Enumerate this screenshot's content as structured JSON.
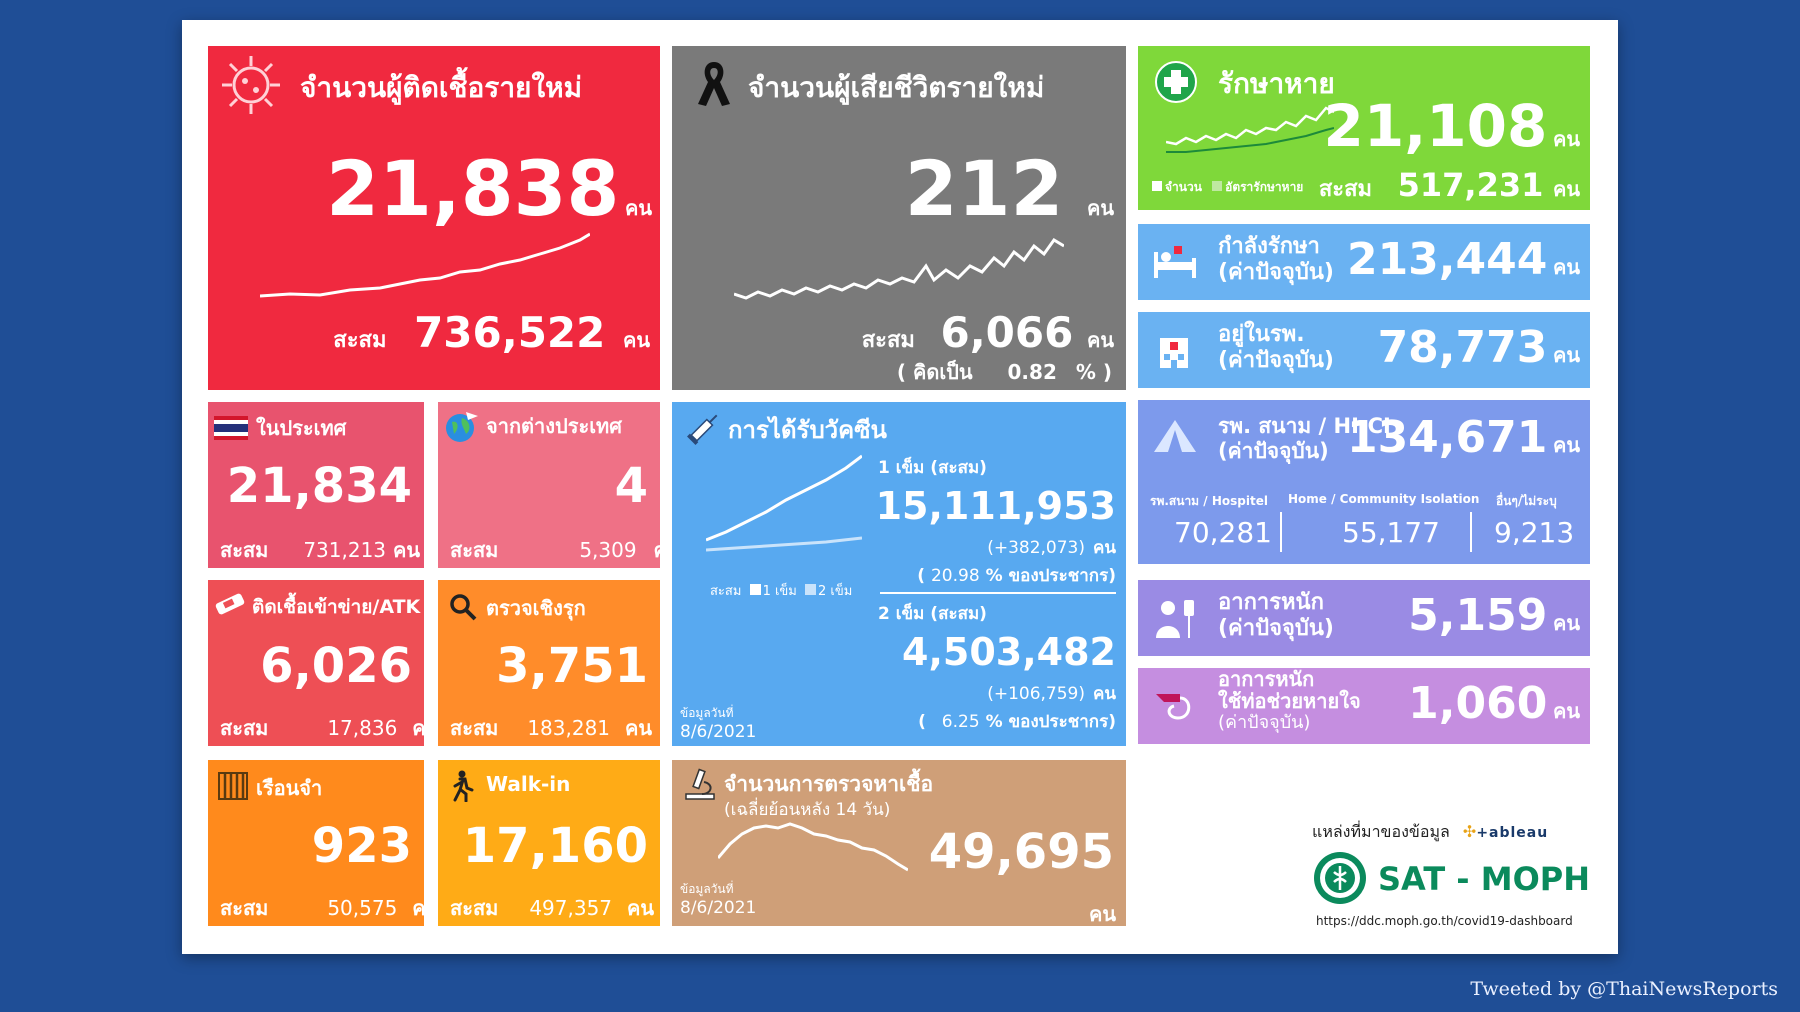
{
  "new_cases": {
    "title": "จำนวนผู้ติดเชื้อรายใหม่",
    "value": "21,838",
    "unit": "คน",
    "total_label": "สะสม",
    "total_value": "736,522",
    "total_unit": "คน"
  },
  "new_deaths": {
    "title": "จำนวนผู้เสียชีวิตรายใหม่",
    "value": "212",
    "unit": "คน",
    "total_label": "สะสม",
    "total_value": "6,066",
    "total_unit": "คน",
    "pct_open": "( คิดเป็น",
    "pct_value": "0.82",
    "pct_close": "% )"
  },
  "recovered": {
    "title": "รักษาหาย",
    "value": "21,108",
    "unit": "คน",
    "legend_count": "จำนวน",
    "legend_rate": "อัตรารักษาหาย",
    "total_label": "สะสม",
    "total_value": "517,231",
    "total_unit": "คน"
  },
  "treating": {
    "line1": "กำลังรักษา",
    "line2": "(ค่าปัจจุบัน)",
    "value": "213,444",
    "unit": "คน"
  },
  "hospital": {
    "line1": "อยู่ในรพ.",
    "line2": "(ค่าปัจจุบัน)",
    "value": "78,773",
    "unit": "คน"
  },
  "field_hospital": {
    "line1": "รพ. สนาม / HI-CI",
    "line2": "(ค่าปัจจุบัน)",
    "value": "134,671",
    "unit": "คน",
    "sub": [
      {
        "label": "รพ.สนาม / Hospitel",
        "value": "70,281"
      },
      {
        "label": "Home / Community Isolation",
        "value": "55,177"
      },
      {
        "label": "อื่นๆ/ไม่ระบุ",
        "value": "9,213"
      }
    ]
  },
  "severe": {
    "line1": "อาการหนัก",
    "line2": "(ค่าปัจจุบัน)",
    "value": "5,159",
    "unit": "คน"
  },
  "ventilator": {
    "line1": "อาการหนัก",
    "line2": "ใช้ท่อช่วยหายใจ",
    "line3": "(ค่าปัจจุบัน)",
    "value": "1,060",
    "unit": "คน"
  },
  "domestic": {
    "title": "ในประเทศ",
    "value": "21,834",
    "total_label": "สะสม",
    "total_value": "731,213",
    "total_unit": "คน"
  },
  "abroad": {
    "title": "จากต่างประเทศ",
    "value": "4",
    "total_label": "สะสม",
    "total_value": "5,309",
    "total_unit": "คน"
  },
  "atk": {
    "title": "ติดเชื้อเข้าข่าย/ATK",
    "value": "6,026",
    "total_label": "สะสม",
    "total_value": "17,836",
    "total_unit": "คน"
  },
  "proactive": {
    "title": "ตรวจเชิงรุก",
    "value": "3,751",
    "total_label": "สะสม",
    "total_value": "183,281",
    "total_unit": "คน"
  },
  "prison": {
    "title": "เรือนจำ",
    "value": "923",
    "total_label": "สะสม",
    "total_value": "50,575",
    "total_unit": "คน"
  },
  "walkin": {
    "title": "Walk-in",
    "value": "17,160",
    "total_label": "สะสม",
    "total_value": "497,357",
    "total_unit": "คน"
  },
  "vaccine": {
    "title": "การได้รับวัคซีน",
    "dose1_label": "1 เข็ม (สะสม)",
    "dose1_value": "15,111,953",
    "dose1_delta": "(+382,073)",
    "dose1_unit": "คน",
    "dose1_pct_open": "(",
    "dose1_pct": "20.98",
    "dose1_pct_close": "% ของประชากร)",
    "dose2_label": "2 เข็ม (สะสม)",
    "dose2_value": "4,503,482",
    "dose2_delta": "(+106,759)",
    "dose2_unit": "คน",
    "dose2_pct_open": "(",
    "dose2_pct": "6.25",
    "dose2_pct_close": "% ของประชากร)",
    "legend_total": "สะสม",
    "legend_d1": "1 เข็ม",
    "legend_d2": "2 เข็ม",
    "date_label": "ข้อมูลวันที่",
    "date_value": "8/6/2021"
  },
  "tests": {
    "title": "จำนวนการตรวจหาเชื้อ",
    "subtitle": "(เฉลี่ยย้อนหลัง 14 วัน)",
    "value": "49,695",
    "unit": "คน",
    "date_label": "ข้อมูลวันที่",
    "date_value": "8/6/2021"
  },
  "source": {
    "label": "แหล่งที่มาของข้อมูล",
    "tableau": "+ableau",
    "brand": "SAT - MOPH",
    "url": "https://ddc.moph.go.th/covid19-dashboard"
  },
  "tweet": "Tweeted by @ThaiNewsReports"
}
